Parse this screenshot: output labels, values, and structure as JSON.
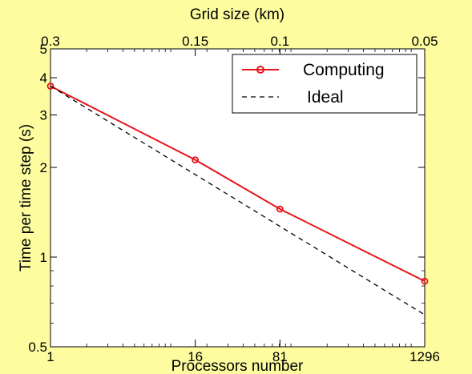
{
  "chart_data": {
    "type": "line",
    "title": "",
    "xlabel": "Processors number",
    "ylabel": "Time per time step (s)",
    "top_xlabel": "Grid size (km)",
    "x_scale": "log",
    "y_scale": "log",
    "xlim": [
      1,
      1296
    ],
    "ylim": [
      0.5,
      5
    ],
    "x_ticks": [
      {
        "value": 1,
        "label": "1"
      },
      {
        "value": 16,
        "label": "16"
      },
      {
        "value": 81,
        "label": "81"
      },
      {
        "value": 1296,
        "label": "1296"
      }
    ],
    "top_ticks": [
      {
        "value": 1,
        "label": "0.3"
      },
      {
        "value": 16,
        "label": "0.15"
      },
      {
        "value": 81,
        "label": "0.1"
      },
      {
        "value": 1296,
        "label": "0.05"
      }
    ],
    "y_ticks": [
      {
        "value": 0.5,
        "label": "0.5"
      },
      {
        "value": 1,
        "label": "1"
      },
      {
        "value": 2,
        "label": "2"
      },
      {
        "value": 3,
        "label": "3"
      },
      {
        "value": 4,
        "label": "4"
      },
      {
        "value": 5,
        "label": "5"
      }
    ],
    "grid": false,
    "legend_position": "top-right",
    "series": [
      {
        "name": "Computing",
        "color": "#e8151b",
        "style": "solid-circle-markers",
        "x": [
          1,
          16,
          81,
          1296
        ],
        "y": [
          3.75,
          2.12,
          1.45,
          0.83
        ]
      },
      {
        "name": "Ideal",
        "color": "#000000",
        "style": "dashed",
        "x": [
          1,
          1296
        ],
        "y": [
          3.75,
          0.64
        ]
      }
    ]
  }
}
